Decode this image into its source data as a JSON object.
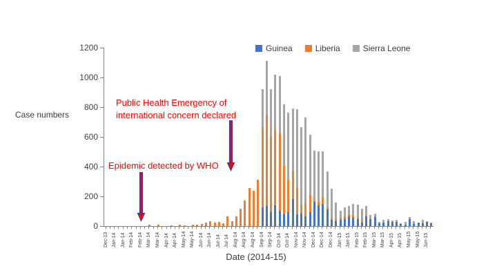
{
  "axis": {
    "y_label": "Case numbers",
    "x_label": "Date (2014-15)",
    "y_ticks": [
      "0",
      "200",
      "400",
      "600",
      "800",
      "1000",
      "1200"
    ]
  },
  "legend": [
    {
      "label": "Guinea",
      "color": "#4472C4"
    },
    {
      "label": "Liberia",
      "color": "#ED7D31"
    },
    {
      "label": "Sierra Leone",
      "color": "#A5A5A5"
    }
  ],
  "annotations": {
    "pheic_line1": "Public Health Emergency of",
    "pheic_line2": "international concern declared",
    "who": "Epidemic detected by WHO",
    "text_color": "#FF0000",
    "arrow_fill": "#FF0000",
    "arrow_outline": "#3B3A99"
  },
  "chart_data": {
    "type": "bar",
    "stacked": true,
    "title": "",
    "xlabel": "Date (2014-15)",
    "ylabel": "Case numbers",
    "ylim": [
      0,
      1200
    ],
    "bar_count": 76,
    "label_every_n_bars": 2,
    "x_tick_labels": [
      "Dec-13",
      "Jan-14",
      "Jan-14",
      "Feb-14",
      "Feb-14",
      "Mar-14",
      "Mar-14",
      "Apr-14",
      "Apr-14",
      "May-14",
      "May-14",
      "Jun-14",
      "Jun-14",
      "Jul-14",
      "Jul-14",
      "Aug-14",
      "Aug-14",
      "Aug-14",
      "Sep-14",
      "Sep-14",
      "Oct-14",
      "Oct-14",
      "Nov-14",
      "Nov-14",
      "Dec-14",
      "Dec-14",
      "Dec-14",
      "Jan-15",
      "Jan-15",
      "Feb-15",
      "Feb-15",
      "Mar-15",
      "Mar-15",
      "Apr-15",
      "Apr-15",
      "May-15",
      "May-15",
      "Jun-15"
    ],
    "series": [
      {
        "name": "Guinea",
        "color": "#4472C4",
        "values": [
          0,
          0,
          0,
          0,
          0,
          0,
          0,
          0,
          0,
          0,
          0,
          0,
          0,
          0,
          0,
          0,
          0,
          0,
          0,
          0,
          0,
          0,
          0,
          0,
          0,
          0,
          0,
          0,
          0,
          0,
          0,
          0,
          0,
          0,
          0,
          0,
          126,
          135,
          94,
          141,
          102,
          79,
          94,
          180,
          79,
          82,
          64,
          94,
          164,
          141,
          149,
          110,
          40,
          33,
          40,
          47,
          64,
          56,
          47,
          25,
          64,
          48,
          64,
          20,
          25,
          33,
          26,
          28,
          12,
          9,
          48,
          14,
          25,
          18,
          26,
          20
        ]
      },
      {
        "name": "Liberia",
        "color": "#ED7D31",
        "values": [
          0,
          0,
          0,
          0,
          0,
          0,
          0,
          0,
          0,
          0,
          8,
          0,
          8,
          0,
          0,
          6,
          0,
          9,
          6,
          0,
          8,
          10,
          12,
          22,
          31,
          25,
          28,
          19,
          63,
          33,
          63,
          117,
          172,
          257,
          237,
          310,
          534,
          614,
          512,
          509,
          521,
          326,
          222,
          193,
          178,
          60,
          93,
          117,
          10,
          23,
          46,
          16,
          16,
          15,
          16,
          17,
          15,
          15,
          10,
          15,
          8,
          0,
          3,
          0,
          0,
          0,
          0,
          0,
          0,
          0,
          0,
          0,
          0,
          0,
          0,
          0
        ]
      },
      {
        "name": "Sierra Leone",
        "color": "#A5A5A5",
        "values": [
          0,
          0,
          0,
          0,
          0,
          0,
          0,
          0,
          0,
          0,
          0,
          0,
          0,
          0,
          0,
          0,
          0,
          0,
          0,
          0,
          0,
          0,
          0,
          0,
          0,
          0,
          0,
          0,
          0,
          0,
          0,
          0,
          0,
          0,
          0,
          0,
          260,
          361,
          314,
          370,
          387,
          415,
          449,
          417,
          528,
          521,
          573,
          403,
          331,
          337,
          306,
          243,
          194,
          109,
          46,
          62,
          54,
          78,
          87,
          78,
          63,
          28,
          15,
          10,
          15,
          15,
          10,
          15,
          5,
          20,
          11,
          19,
          0,
          25,
          7,
          5
        ]
      }
    ]
  }
}
